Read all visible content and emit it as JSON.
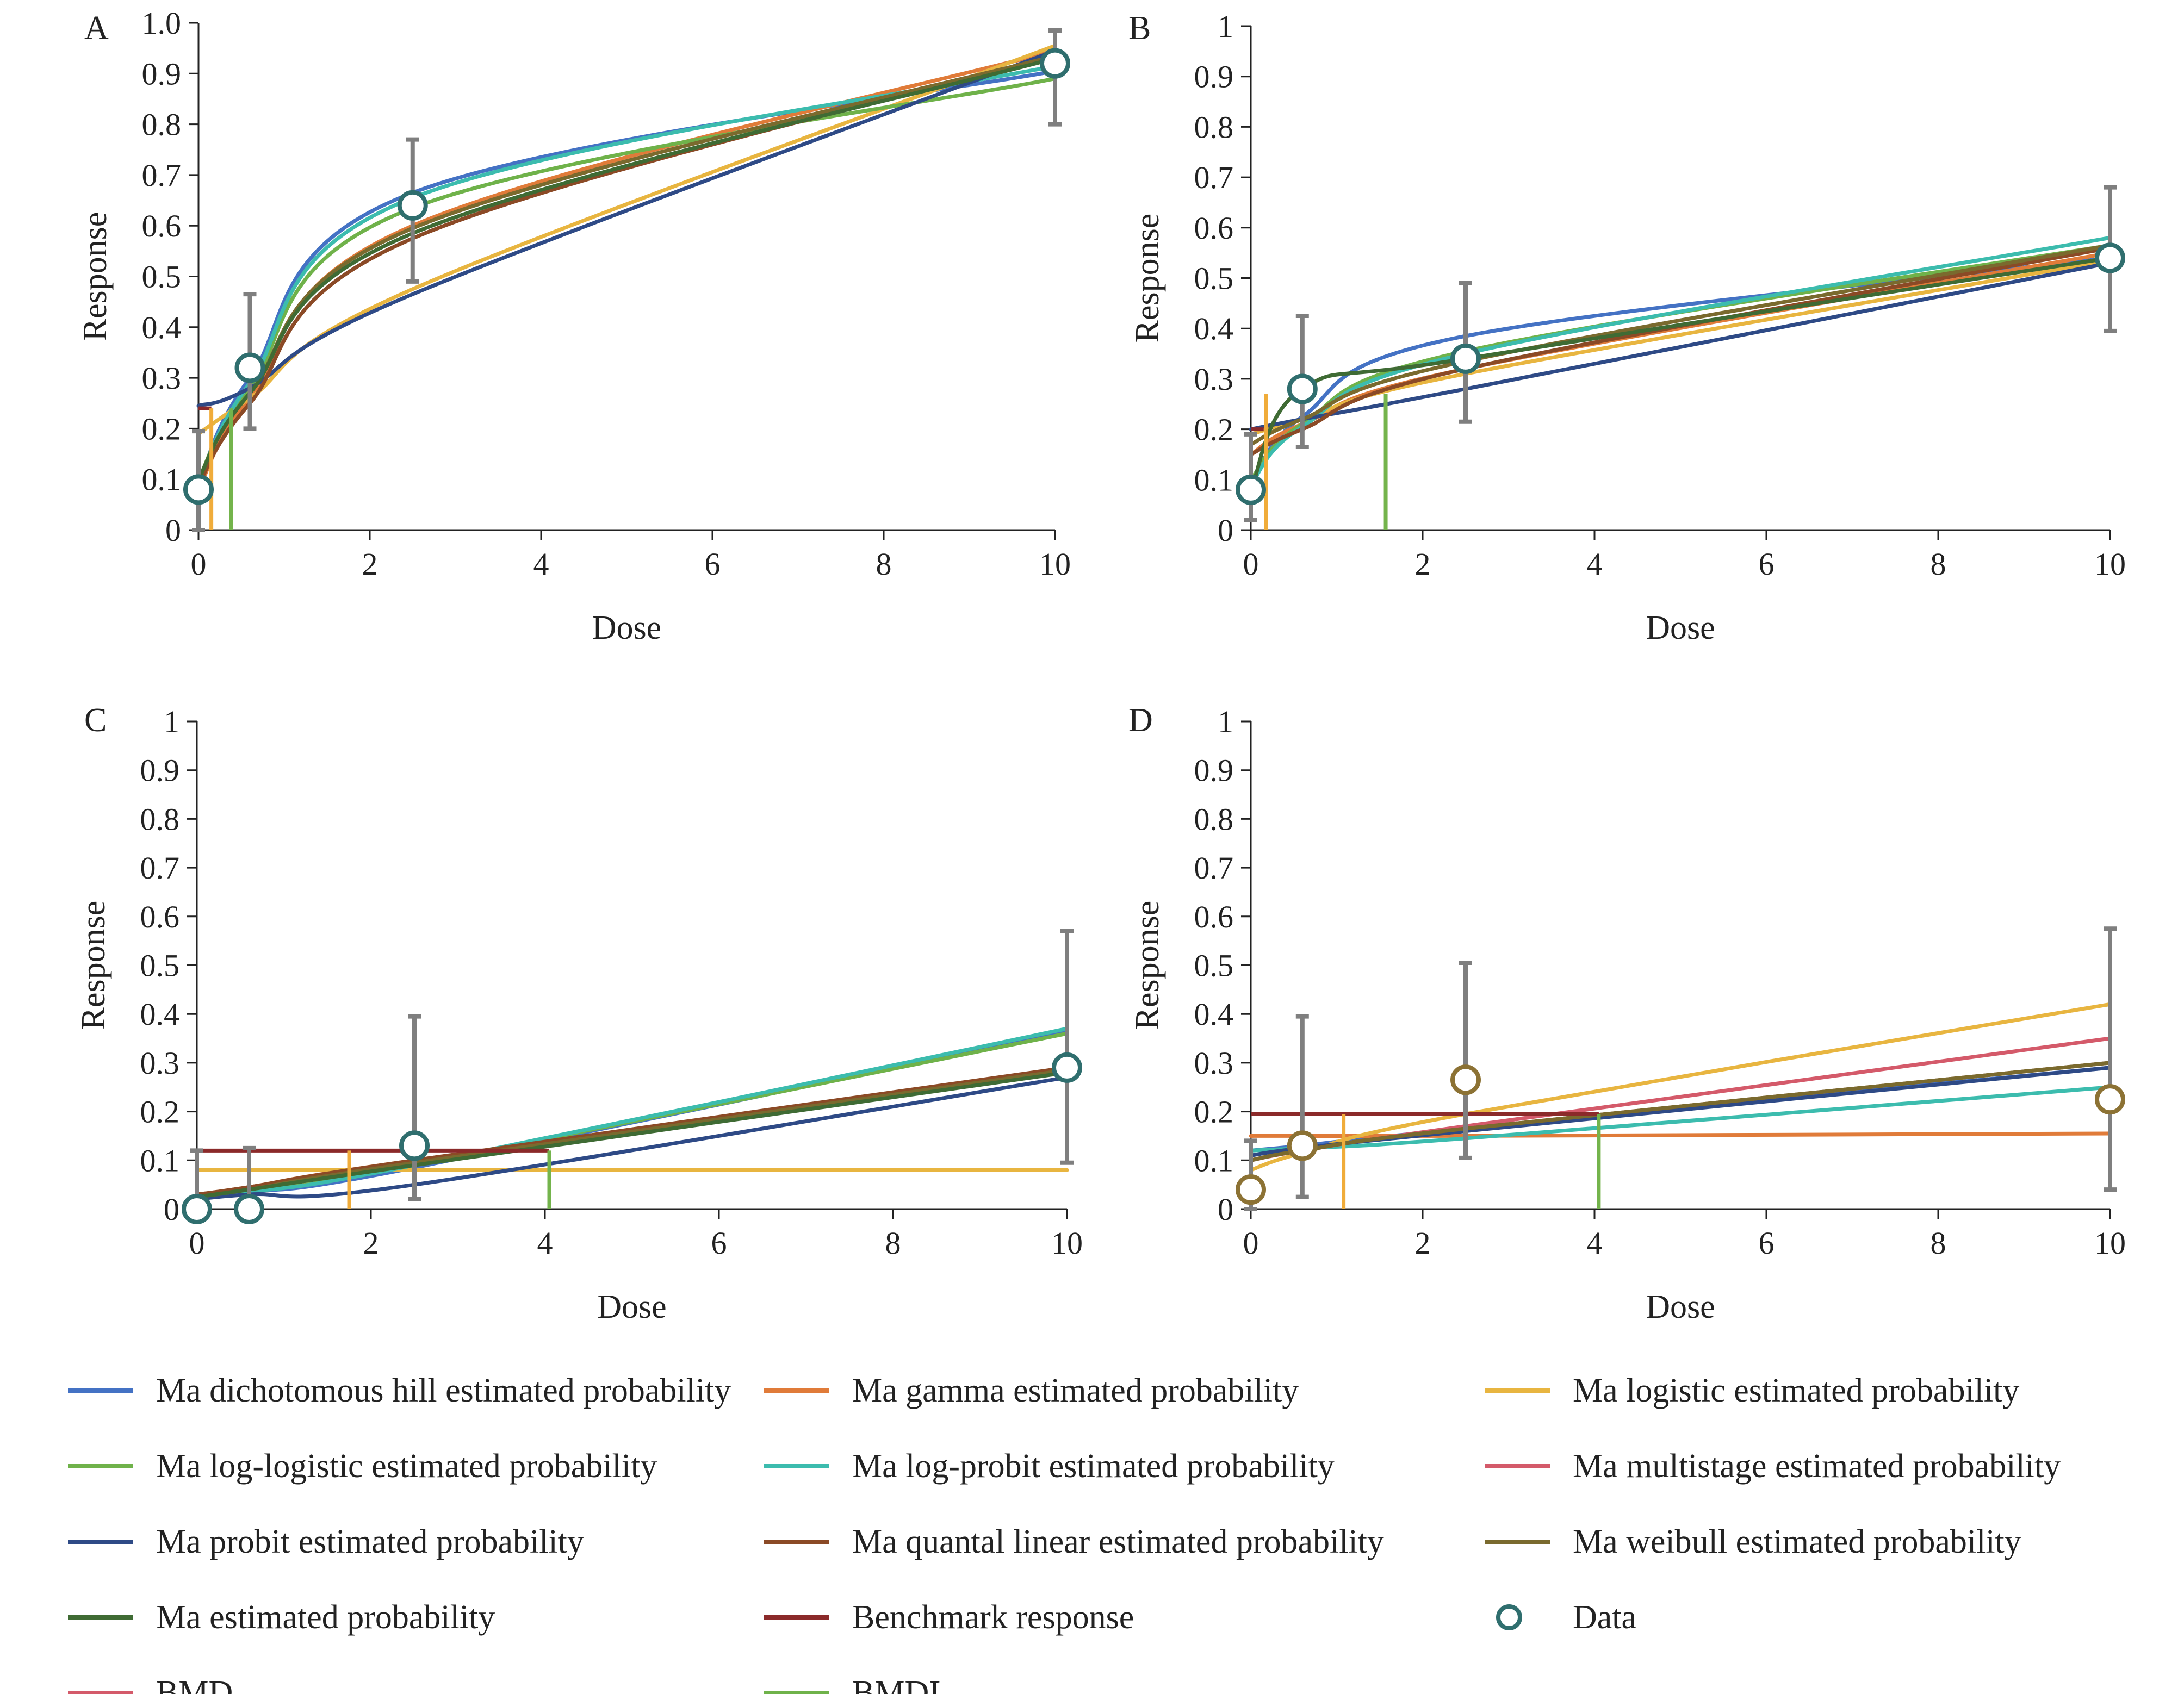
{
  "colors": {
    "hill": "#4472c4",
    "gamma": "#e07b39",
    "logistic": "#e8b540",
    "loglogistic": "#6fb24a",
    "logprobit": "#3cbcae",
    "multistage": "#d45a6a",
    "probit": "#2e4a86",
    "quantal": "#8b4a26",
    "weibull": "#7a6a2e",
    "ma": "#3f6b34",
    "bmr": "#8b2a2a",
    "bmd": "#f0ac3a",
    "bmdl": "#74b44c",
    "data": "#2f6e6e",
    "data_d": "#8c7234",
    "errorbar": "#7f7f7f"
  },
  "legend": [
    {
      "key": "hill",
      "label": "Ma dichotomous hill estimated probability",
      "type": "line"
    },
    {
      "key": "gamma",
      "label": "Ma gamma estimated probability",
      "type": "line"
    },
    {
      "key": "logistic",
      "label": "Ma logistic estimated probability",
      "type": "line"
    },
    {
      "key": "loglogistic",
      "label": "Ma log-logistic estimated probability",
      "type": "line"
    },
    {
      "key": "logprobit",
      "label": "Ma log-probit estimated probability",
      "type": "line"
    },
    {
      "key": "multistage",
      "label": "Ma multistage estimated probability",
      "type": "line"
    },
    {
      "key": "probit",
      "label": "Ma probit estimated probability",
      "type": "line"
    },
    {
      "key": "quantal",
      "label": "Ma quantal linear estimated probability",
      "type": "line"
    },
    {
      "key": "weibull",
      "label": "Ma weibull estimated probability",
      "type": "line"
    },
    {
      "key": "ma",
      "label": "Ma estimated probability",
      "type": "line"
    },
    {
      "key": "bmr",
      "label": "Benchmark response",
      "type": "line"
    },
    {
      "key": "data",
      "label": "Data",
      "type": "marker"
    },
    {
      "key": "multistage",
      "label": "BMD",
      "type": "line"
    },
    {
      "key": "loglogistic",
      "label": "BMDL",
      "type": "line"
    }
  ],
  "chart_data": [
    {
      "panel": "A",
      "type": "line",
      "xlabel": "Dose",
      "ylabel": "Response",
      "xlim": [
        0,
        10
      ],
      "ylim": [
        0,
        1
      ],
      "xticks": [
        "0",
        "2",
        "4",
        "6",
        "8",
        "10"
      ],
      "yticks": [
        "0",
        "0.1",
        "0.2",
        "0.3",
        "0.4",
        "0.5",
        "0.6",
        "0.7",
        "0.8",
        "0.9",
        "1.0"
      ],
      "x": [
        0,
        0.6,
        2.5,
        10
      ],
      "series": [
        {
          "key": "hill",
          "values": [
            0.09,
            0.3,
            0.665,
            0.905
          ]
        },
        {
          "key": "gamma",
          "values": [
            0.08,
            0.26,
            0.6,
            0.945
          ]
        },
        {
          "key": "logistic",
          "values": [
            0.19,
            0.26,
            0.475,
            0.955
          ]
        },
        {
          "key": "loglogistic",
          "values": [
            0.1,
            0.28,
            0.635,
            0.89
          ]
        },
        {
          "key": "logprobit",
          "values": [
            0.09,
            0.29,
            0.655,
            0.915
          ]
        },
        {
          "key": "probit",
          "values": [
            0.245,
            0.28,
            0.465,
            0.945
          ]
        },
        {
          "key": "quantal",
          "values": [
            0.09,
            0.25,
            0.575,
            0.935
          ]
        },
        {
          "key": "weibull",
          "values": [
            0.1,
            0.27,
            0.595,
            0.935
          ]
        },
        {
          "key": "ma",
          "values": [
            0.1,
            0.27,
            0.585,
            0.93
          ]
        }
      ],
      "data_points": {
        "x": [
          0,
          0.6,
          2.5,
          10
        ],
        "y": [
          0.08,
          0.32,
          0.64,
          0.92
        ],
        "lower": [
          0.0,
          0.2,
          0.49,
          0.8
        ],
        "upper": [
          0.195,
          0.465,
          0.77,
          0.985
        ]
      },
      "bmr": {
        "y": 0.24,
        "x_end": 0.15
      },
      "bmd": {
        "x": 0.15,
        "y_top": 0.24
      },
      "bmdl": {
        "x": 0.38,
        "y_top": 0.24
      }
    },
    {
      "panel": "B",
      "type": "line",
      "xlabel": "Dose",
      "ylabel": "Response",
      "xlim": [
        0,
        10
      ],
      "ylim": [
        0,
        1
      ],
      "xticks": [
        "0",
        "2",
        "4",
        "6",
        "8",
        "10"
      ],
      "yticks": [
        "0",
        "0.1",
        "0.2",
        "0.3",
        "0.4",
        "0.5",
        "0.6",
        "0.7",
        "0.8",
        "0.9",
        "1"
      ],
      "x": [
        0,
        0.6,
        2.5,
        10
      ],
      "series": [
        {
          "key": "hill",
          "values": [
            0.09,
            0.225,
            0.385,
            0.54
          ]
        },
        {
          "key": "gamma",
          "values": [
            0.15,
            0.21,
            0.32,
            0.55
          ]
        },
        {
          "key": "logistic",
          "values": [
            0.19,
            0.22,
            0.31,
            0.535
          ]
        },
        {
          "key": "loglogistic",
          "values": [
            0.1,
            0.21,
            0.355,
            0.565
          ]
        },
        {
          "key": "logprobit",
          "values": [
            0.09,
            0.205,
            0.35,
            0.58
          ]
        },
        {
          "key": "probit",
          "values": [
            0.2,
            0.22,
            0.28,
            0.53
          ]
        },
        {
          "key": "quantal",
          "values": [
            0.15,
            0.2,
            0.32,
            0.56
          ]
        },
        {
          "key": "weibull",
          "values": [
            0.17,
            0.22,
            0.335,
            0.565
          ]
        },
        {
          "key": "ma",
          "values": [
            0.08,
            0.28,
            0.34,
            0.54
          ]
        }
      ],
      "data_points": {
        "x": [
          0,
          0.6,
          2.5,
          10
        ],
        "y": [
          0.08,
          0.28,
          0.34,
          0.54
        ],
        "lower": [
          0.02,
          0.165,
          0.215,
          0.395
        ],
        "upper": [
          0.19,
          0.425,
          0.49,
          0.68
        ]
      },
      "bmr": {
        "y": 0.2,
        "x_end": 0.15
      },
      "bmd": {
        "x": 0.18,
        "y_top": 0.27
      },
      "bmdl": {
        "x": 1.57,
        "y_top": 0.27
      }
    },
    {
      "panel": "C",
      "type": "line",
      "xlabel": "Dose",
      "ylabel": "Response",
      "xlim": [
        0,
        10
      ],
      "ylim": [
        0,
        1
      ],
      "xticks": [
        "0",
        "2",
        "4",
        "6",
        "8",
        "10"
      ],
      "yticks": [
        "0",
        "0.1",
        "0.2",
        "0.3",
        "0.4",
        "0.5",
        "0.6",
        "0.7",
        "0.8",
        "0.9",
        "1"
      ],
      "x": [
        0,
        0.6,
        2.5,
        10
      ],
      "series": [
        {
          "key": "hill",
          "values": [
            0.025,
            0.035,
            0.085,
            0.365
          ]
        },
        {
          "key": "gamma",
          "values": [
            0.03,
            0.045,
            0.1,
            0.285
          ]
        },
        {
          "key": "logistic",
          "values": [
            0.08,
            0.08,
            0.08,
            0.08
          ]
        },
        {
          "key": "loglogistic",
          "values": [
            0.02,
            0.035,
            0.09,
            0.36
          ]
        },
        {
          "key": "logprobit",
          "values": [
            0.02,
            0.035,
            0.09,
            0.37
          ]
        },
        {
          "key": "probit",
          "values": [
            0.02,
            0.03,
            0.05,
            0.27
          ]
        },
        {
          "key": "quantal",
          "values": [
            0.03,
            0.045,
            0.1,
            0.29
          ]
        },
        {
          "key": "weibull",
          "values": [
            0.025,
            0.04,
            0.095,
            0.285
          ]
        },
        {
          "key": "ma",
          "values": [
            0.025,
            0.04,
            0.09,
            0.28
          ]
        }
      ],
      "data_points": {
        "x": [
          0,
          0.6,
          2.5,
          10
        ],
        "y": [
          0.0,
          0.0,
          0.13,
          0.29
        ],
        "lower": [
          0.0,
          0.0,
          0.02,
          0.095
        ],
        "upper": [
          0.12,
          0.125,
          0.395,
          0.57
        ]
      },
      "bmr": {
        "y": 0.12,
        "x_end": 4.05
      },
      "bmd": {
        "x": 1.75,
        "y_top": 0.12
      },
      "bmdl": {
        "x": 4.05,
        "y_top": 0.12
      }
    },
    {
      "panel": "D",
      "type": "line",
      "xlabel": "Dose",
      "ylabel": "Response",
      "xlim": [
        0,
        10
      ],
      "ylim": [
        0,
        1
      ],
      "xticks": [
        "0",
        "2",
        "4",
        "6",
        "8",
        "10"
      ],
      "yticks": [
        "0",
        "0.1",
        "0.2",
        "0.3",
        "0.4",
        "0.5",
        "0.6",
        "0.7",
        "0.8",
        "0.9",
        "1"
      ],
      "x": [
        0,
        0.6,
        2.5,
        10
      ],
      "series": [
        {
          "key": "hill",
          "values": [
            0.12,
            0.13,
            0.165,
            0.29
          ]
        },
        {
          "key": "gamma",
          "values": [
            0.15,
            0.15,
            0.15,
            0.155
          ]
        },
        {
          "key": "logistic",
          "values": [
            0.08,
            0.115,
            0.195,
            0.42
          ]
        },
        {
          "key": "logprobit",
          "values": [
            0.12,
            0.125,
            0.145,
            0.25
          ]
        },
        {
          "key": "multistage",
          "values": [
            0.1,
            0.12,
            0.17,
            0.35
          ]
        },
        {
          "key": "probit",
          "values": [
            0.11,
            0.125,
            0.16,
            0.29
          ]
        },
        {
          "key": "quantal",
          "values": [
            0.1,
            0.12,
            0.165,
            0.3
          ]
        },
        {
          "key": "weibull",
          "values": [
            0.1,
            0.12,
            0.165,
            0.3
          ]
        }
      ],
      "data_points": {
        "x": [
          0,
          0.6,
          2.5,
          10
        ],
        "y": [
          0.04,
          0.13,
          0.265,
          0.225
        ],
        "lower": [
          0.0,
          0.025,
          0.105,
          0.04
        ],
        "upper": [
          0.14,
          0.395,
          0.505,
          0.575
        ]
      },
      "bmr": {
        "y": 0.195,
        "x_end": 4.05
      },
      "bmd": {
        "x": 1.08,
        "y_top": 0.195
      },
      "bmdl": {
        "x": 4.05,
        "y_top": 0.195
      }
    }
  ]
}
